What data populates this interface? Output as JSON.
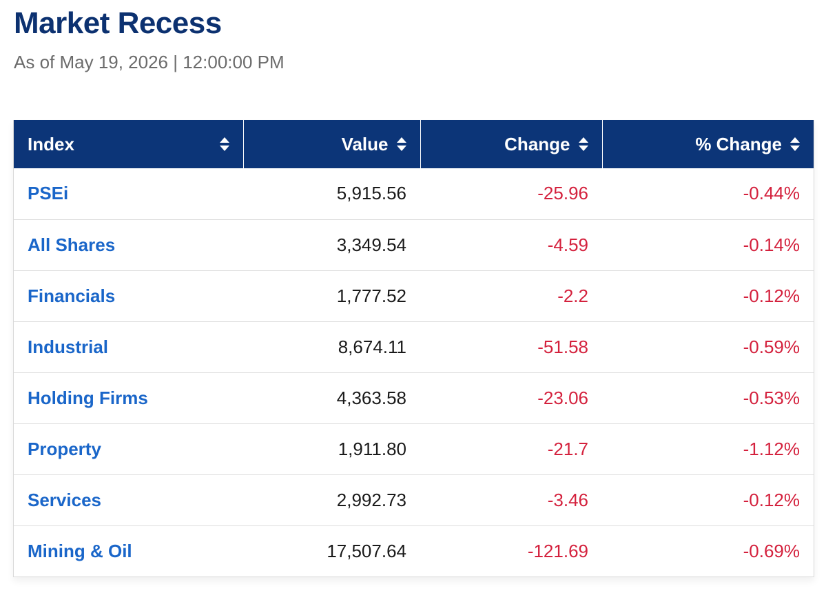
{
  "page": {
    "title": "Market Recess",
    "subtitle": "As of May 19, 2026 | 12:00:00 PM"
  },
  "table": {
    "headers": {
      "index": "Index",
      "value": "Value",
      "change": "Change",
      "pct_change": "% Change"
    },
    "sort_icon": "sort-up-down-icon",
    "rows": [
      {
        "index": "PSEi",
        "value": "5,915.56",
        "change": "-25.96",
        "pct_change": "-0.44%"
      },
      {
        "index": "All Shares",
        "value": "3,349.54",
        "change": "-4.59",
        "pct_change": "-0.14%"
      },
      {
        "index": "Financials",
        "value": "1,777.52",
        "change": "-2.2",
        "pct_change": "-0.12%"
      },
      {
        "index": "Industrial",
        "value": "8,674.11",
        "change": "-51.58",
        "pct_change": "-0.59%"
      },
      {
        "index": "Holding Firms",
        "value": "4,363.58",
        "change": "-23.06",
        "pct_change": "-0.53%"
      },
      {
        "index": "Property",
        "value": "1,911.80",
        "change": "-21.7",
        "pct_change": "-1.12%"
      },
      {
        "index": "Services",
        "value": "2,992.73",
        "change": "-3.46",
        "pct_change": "-0.12%"
      },
      {
        "index": "Mining & Oil",
        "value": "17,507.64",
        "change": "-121.69",
        "pct_change": "-0.69%"
      }
    ]
  },
  "colors": {
    "title": "#0c3170",
    "header_bg": "#0c3578",
    "index_link": "#1a66c9",
    "negative": "#d4213d"
  }
}
